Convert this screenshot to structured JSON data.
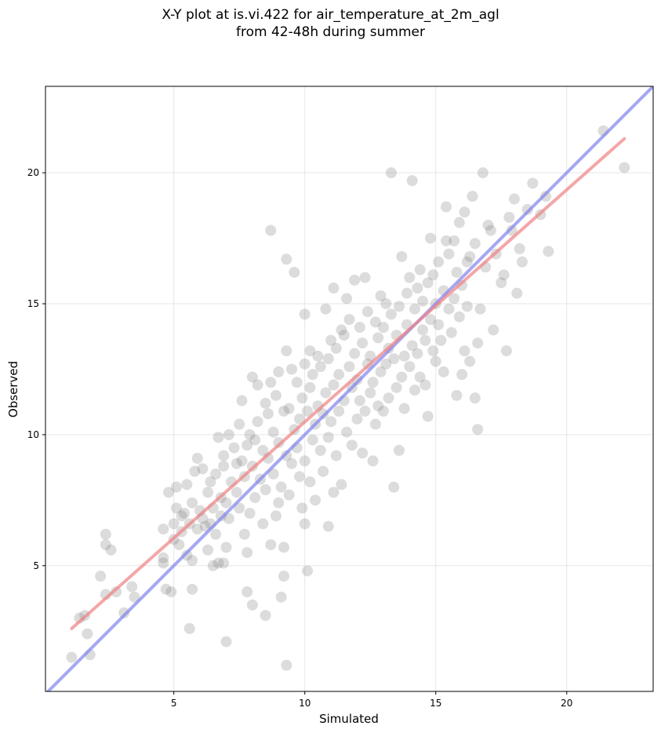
{
  "chart_data": {
    "type": "scatter",
    "title": "X-Y plot at is.vi.422 for air_temperature_at_2m_agl",
    "subtitle": "from 42-48h during summer",
    "xlabel": "Simulated",
    "ylabel": "Observed",
    "xlim": [
      0.1,
      23.3
    ],
    "ylim": [
      0.2,
      23.3
    ],
    "xticks": [
      5,
      10,
      15,
      20
    ],
    "yticks": [
      5,
      10,
      15,
      20
    ],
    "grid": true,
    "point_color": "#808080",
    "points": [
      [
        1.1,
        1.5
      ],
      [
        1.4,
        3.0
      ],
      [
        1.6,
        3.1
      ],
      [
        1.7,
        2.4
      ],
      [
        1.8,
        1.6
      ],
      [
        2.2,
        4.6
      ],
      [
        2.4,
        3.9
      ],
      [
        2.4,
        5.8
      ],
      [
        2.4,
        6.2
      ],
      [
        2.6,
        5.6
      ],
      [
        2.8,
        4.0
      ],
      [
        3.1,
        3.2
      ],
      [
        3.4,
        4.2
      ],
      [
        3.5,
        3.8
      ],
      [
        4.6,
        5.3
      ],
      [
        4.6,
        5.1
      ],
      [
        4.6,
        6.4
      ],
      [
        4.7,
        4.1
      ],
      [
        4.8,
        7.8
      ],
      [
        4.9,
        4.0
      ],
      [
        5.0,
        6.0
      ],
      [
        5.0,
        6.6
      ],
      [
        5.1,
        7.2
      ],
      [
        5.1,
        8.0
      ],
      [
        5.2,
        5.8
      ],
      [
        5.3,
        6.9
      ],
      [
        5.3,
        6.3
      ],
      [
        5.4,
        7.0
      ],
      [
        5.5,
        8.1
      ],
      [
        5.5,
        5.4
      ],
      [
        5.6,
        2.6
      ],
      [
        5.6,
        6.6
      ],
      [
        5.7,
        7.4
      ],
      [
        5.7,
        5.2
      ],
      [
        5.7,
        4.1
      ],
      [
        5.8,
        8.6
      ],
      [
        5.9,
        6.4
      ],
      [
        5.9,
        9.1
      ],
      [
        6.0,
        7.1
      ],
      [
        6.1,
        6.8
      ],
      [
        6.1,
        8.7
      ],
      [
        6.2,
        6.5
      ],
      [
        6.3,
        5.6
      ],
      [
        6.3,
        7.8
      ],
      [
        6.4,
        6.6
      ],
      [
        6.4,
        8.2
      ],
      [
        6.5,
        5.0
      ],
      [
        6.5,
        7.2
      ],
      [
        6.6,
        6.2
      ],
      [
        6.6,
        8.5
      ],
      [
        6.7,
        5.1
      ],
      [
        6.7,
        9.9
      ],
      [
        6.8,
        7.6
      ],
      [
        6.8,
        6.9
      ],
      [
        6.9,
        9.2
      ],
      [
        6.9,
        8.8
      ],
      [
        6.9,
        5.1
      ],
      [
        7.0,
        2.1
      ],
      [
        7.0,
        5.7
      ],
      [
        7.0,
        7.4
      ],
      [
        7.1,
        10.0
      ],
      [
        7.1,
        6.8
      ],
      [
        7.2,
        8.2
      ],
      [
        7.3,
        9.5
      ],
      [
        7.4,
        7.8
      ],
      [
        7.4,
        8.9
      ],
      [
        7.5,
        10.4
      ],
      [
        7.5,
        7.2
      ],
      [
        7.6,
        9.0
      ],
      [
        7.6,
        11.3
      ],
      [
        7.7,
        6.2
      ],
      [
        7.7,
        8.4
      ],
      [
        7.8,
        4.0
      ],
      [
        7.8,
        9.6
      ],
      [
        7.8,
        5.5
      ],
      [
        7.9,
        7.0
      ],
      [
        7.9,
        10.0
      ],
      [
        8.0,
        3.5
      ],
      [
        8.0,
        8.8
      ],
      [
        8.0,
        12.2
      ],
      [
        8.1,
        9.8
      ],
      [
        8.1,
        7.6
      ],
      [
        8.2,
        11.9
      ],
      [
        8.2,
        10.5
      ],
      [
        8.3,
        8.3
      ],
      [
        8.4,
        9.4
      ],
      [
        8.4,
        6.6
      ],
      [
        8.5,
        3.1
      ],
      [
        8.5,
        11.2
      ],
      [
        8.5,
        7.9
      ],
      [
        8.6,
        10.8
      ],
      [
        8.6,
        9.1
      ],
      [
        8.7,
        5.8
      ],
      [
        8.7,
        12.0
      ],
      [
        8.7,
        17.8
      ],
      [
        8.8,
        8.5
      ],
      [
        8.8,
        10.1
      ],
      [
        8.9,
        6.9
      ],
      [
        8.9,
        11.5
      ],
      [
        9.0,
        7.4
      ],
      [
        9.0,
        9.7
      ],
      [
        9.0,
        12.4
      ],
      [
        9.1,
        3.8
      ],
      [
        9.1,
        8.0
      ],
      [
        9.2,
        4.6
      ],
      [
        9.2,
        10.9
      ],
      [
        9.2,
        5.7
      ],
      [
        9.3,
        13.2
      ],
      [
        9.3,
        9.2
      ],
      [
        9.3,
        16.7
      ],
      [
        9.3,
        1.2
      ],
      [
        9.4,
        7.7
      ],
      [
        9.4,
        11.0
      ],
      [
        9.5,
        12.5
      ],
      [
        9.5,
        8.9
      ],
      [
        9.6,
        10.2
      ],
      [
        9.6,
        16.2
      ],
      [
        9.7,
        9.5
      ],
      [
        9.7,
        12.0
      ],
      [
        9.8,
        8.4
      ],
      [
        9.8,
        10.6
      ],
      [
        9.9,
        11.4
      ],
      [
        9.9,
        7.2
      ],
      [
        10.0,
        12.7
      ],
      [
        10.0,
        9.0
      ],
      [
        10.0,
        14.6
      ],
      [
        10.0,
        6.6
      ],
      [
        10.1,
        4.8
      ],
      [
        10.1,
        10.9
      ],
      [
        10.2,
        13.2
      ],
      [
        10.2,
        8.2
      ],
      [
        10.2,
        11.8
      ],
      [
        10.3,
        9.8
      ],
      [
        10.3,
        12.3
      ],
      [
        10.4,
        10.4
      ],
      [
        10.4,
        7.5
      ],
      [
        10.5,
        11.1
      ],
      [
        10.5,
        13.0
      ],
      [
        10.6,
        9.4
      ],
      [
        10.6,
        12.6
      ],
      [
        10.7,
        8.6
      ],
      [
        10.7,
        10.8
      ],
      [
        10.8,
        11.6
      ],
      [
        10.8,
        14.8
      ],
      [
        10.9,
        6.5
      ],
      [
        10.9,
        9.9
      ],
      [
        10.9,
        12.9
      ],
      [
        11.0,
        13.6
      ],
      [
        11.0,
        10.5
      ],
      [
        11.1,
        11.9
      ],
      [
        11.1,
        7.8
      ],
      [
        11.1,
        15.6
      ],
      [
        11.2,
        13.3
      ],
      [
        11.2,
        9.2
      ],
      [
        11.3,
        10.9
      ],
      [
        11.3,
        12.3
      ],
      [
        11.4,
        14.0
      ],
      [
        11.4,
        8.1
      ],
      [
        11.5,
        11.3
      ],
      [
        11.5,
        13.8
      ],
      [
        11.6,
        15.2
      ],
      [
        11.6,
        10.1
      ],
      [
        11.7,
        12.6
      ],
      [
        11.7,
        14.4
      ],
      [
        11.8,
        9.6
      ],
      [
        11.8,
        11.8
      ],
      [
        11.9,
        13.1
      ],
      [
        11.9,
        15.9
      ],
      [
        12.0,
        10.6
      ],
      [
        12.0,
        12.1
      ],
      [
        12.1,
        14.1
      ],
      [
        12.1,
        11.3
      ],
      [
        12.2,
        9.3
      ],
      [
        12.2,
        13.5
      ],
      [
        12.3,
        16.0
      ],
      [
        12.3,
        10.9
      ],
      [
        12.4,
        12.7
      ],
      [
        12.4,
        14.7
      ],
      [
        12.5,
        11.6
      ],
      [
        12.5,
        13.0
      ],
      [
        12.6,
        9.0
      ],
      [
        12.6,
        12.0
      ],
      [
        12.7,
        14.3
      ],
      [
        12.7,
        10.4
      ],
      [
        12.8,
        11.1
      ],
      [
        12.8,
        13.7
      ],
      [
        12.9,
        15.3
      ],
      [
        12.9,
        12.4
      ],
      [
        13.0,
        10.9
      ],
      [
        13.0,
        14.1
      ],
      [
        13.1,
        12.7
      ],
      [
        13.1,
        15.0
      ],
      [
        13.2,
        11.4
      ],
      [
        13.2,
        13.3
      ],
      [
        13.3,
        20.0
      ],
      [
        13.3,
        14.6
      ],
      [
        13.4,
        8.0
      ],
      [
        13.4,
        12.9
      ],
      [
        13.5,
        13.8
      ],
      [
        13.5,
        11.8
      ],
      [
        13.6,
        9.4
      ],
      [
        13.6,
        14.9
      ],
      [
        13.7,
        12.2
      ],
      [
        13.7,
        16.8
      ],
      [
        13.8,
        13.0
      ],
      [
        13.8,
        11.0
      ],
      [
        13.9,
        15.4
      ],
      [
        13.9,
        14.2
      ],
      [
        14.0,
        12.6
      ],
      [
        14.0,
        16.0
      ],
      [
        14.1,
        13.4
      ],
      [
        14.1,
        19.7
      ],
      [
        14.2,
        11.7
      ],
      [
        14.2,
        14.8
      ],
      [
        14.3,
        15.6
      ],
      [
        14.3,
        13.1
      ],
      [
        14.4,
        12.2
      ],
      [
        14.4,
        16.3
      ],
      [
        14.5,
        14.0
      ],
      [
        14.5,
        15.1
      ],
      [
        14.6,
        13.6
      ],
      [
        14.6,
        11.9
      ],
      [
        14.7,
        10.7
      ],
      [
        14.7,
        15.8
      ],
      [
        14.8,
        14.4
      ],
      [
        14.8,
        17.5
      ],
      [
        14.9,
        13.2
      ],
      [
        14.9,
        16.1
      ],
      [
        15.0,
        15.0
      ],
      [
        15.0,
        12.8
      ],
      [
        15.1,
        14.2
      ],
      [
        15.1,
        16.6
      ],
      [
        15.2,
        13.6
      ],
      [
        15.3,
        15.5
      ],
      [
        15.3,
        12.4
      ],
      [
        15.4,
        17.4
      ],
      [
        15.4,
        18.7
      ],
      [
        15.5,
        14.8
      ],
      [
        15.5,
        16.9
      ],
      [
        15.6,
        13.9
      ],
      [
        15.7,
        15.2
      ],
      [
        15.7,
        17.4
      ],
      [
        15.8,
        11.5
      ],
      [
        15.8,
        16.2
      ],
      [
        15.9,
        14.5
      ],
      [
        15.9,
        18.1
      ],
      [
        16.0,
        12.3
      ],
      [
        16.0,
        15.7
      ],
      [
        16.1,
        13.2
      ],
      [
        16.1,
        18.5
      ],
      [
        16.2,
        14.9
      ],
      [
        16.2,
        16.6
      ],
      [
        16.3,
        12.8
      ],
      [
        16.3,
        16.8
      ],
      [
        16.4,
        19.1
      ],
      [
        16.5,
        11.4
      ],
      [
        16.5,
        17.3
      ],
      [
        16.6,
        13.5
      ],
      [
        16.6,
        10.2
      ],
      [
        16.7,
        14.8
      ],
      [
        16.8,
        20.0
      ],
      [
        16.9,
        16.4
      ],
      [
        17.0,
        18.0
      ],
      [
        17.1,
        17.8
      ],
      [
        17.2,
        14.0
      ],
      [
        17.3,
        16.9
      ],
      [
        17.5,
        15.8
      ],
      [
        17.6,
        16.1
      ],
      [
        17.7,
        13.2
      ],
      [
        17.8,
        18.3
      ],
      [
        17.9,
        17.8
      ],
      [
        18.0,
        19.0
      ],
      [
        18.1,
        15.4
      ],
      [
        18.2,
        17.1
      ],
      [
        18.3,
        16.6
      ],
      [
        18.5,
        18.6
      ],
      [
        18.7,
        19.6
      ],
      [
        19.0,
        18.4
      ],
      [
        19.2,
        19.1
      ],
      [
        19.3,
        17.0
      ],
      [
        21.4,
        21.6
      ],
      [
        22.2,
        20.2
      ]
    ],
    "fit_line": {
      "color": "#f08080",
      "x": [
        1.1,
        22.2
      ],
      "y": [
        2.6,
        21.3
      ]
    },
    "identity_line": {
      "color": "#8080f0",
      "x": [
        0.1,
        23.3
      ],
      "y": [
        0.1,
        23.3
      ]
    }
  }
}
